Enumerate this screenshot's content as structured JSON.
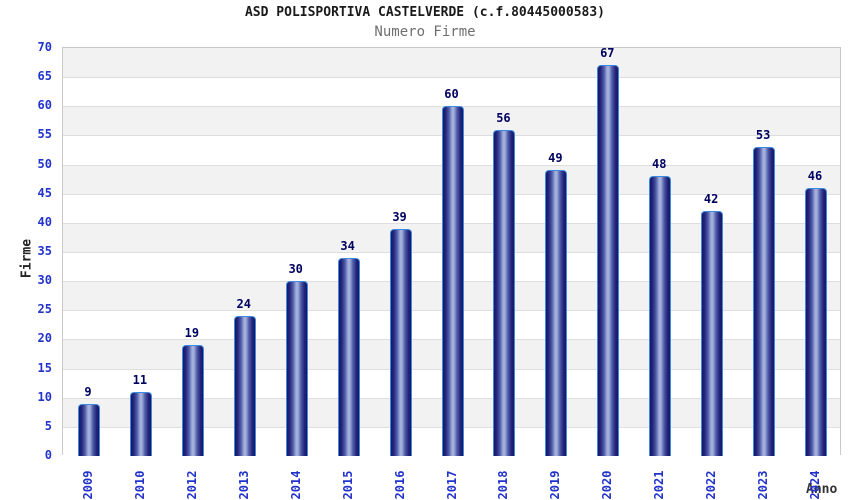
{
  "chart_data": {
    "type": "bar",
    "title": "ASD POLISPORTIVA CASTELVERDE (c.f.80445000583)",
    "subtitle": "Numero Firme",
    "xlabel": "Anno",
    "ylabel": "Firme",
    "categories": [
      "2009",
      "2010",
      "2012",
      "2013",
      "2014",
      "2015",
      "2016",
      "2017",
      "2018",
      "2019",
      "2020",
      "2021",
      "2022",
      "2023",
      "2024"
    ],
    "values": [
      9,
      11,
      19,
      24,
      30,
      34,
      39,
      60,
      56,
      49,
      67,
      48,
      42,
      53,
      46
    ],
    "ylim": [
      0,
      70
    ],
    "ytick_step": 5,
    "ytick_labels": [
      "0",
      "5",
      "10",
      "15",
      "20",
      "25",
      "30",
      "35",
      "40",
      "45",
      "50",
      "55",
      "60",
      "65",
      "70"
    ],
    "grid": "alternating-horizontal-bands",
    "legend": "none",
    "colors": {
      "bar_edge": "#3d8be0",
      "bar_dark": "#1b1b6a",
      "bar_light": "#aab5de",
      "tick_label": "#2233cc",
      "value_label": "#000060",
      "band_gray": "#f2f2f2",
      "band_white": "#ffffff",
      "plot_border": "#c9c9c9",
      "title_color": "#1a1a1a",
      "subtitle_color": "#6f6f6f"
    }
  }
}
